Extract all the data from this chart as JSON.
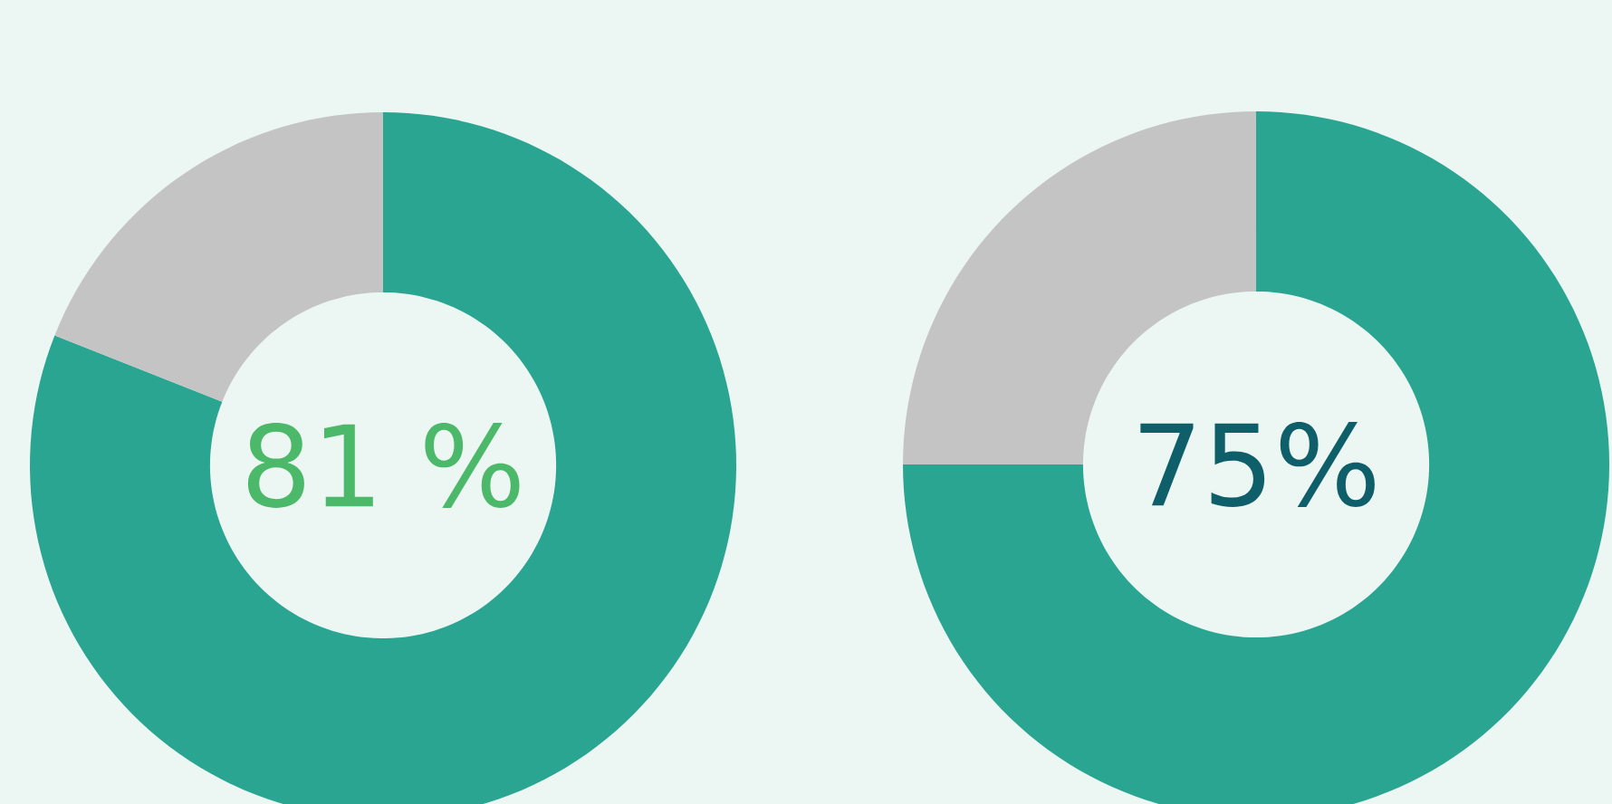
{
  "chart_data": [
    {
      "type": "donut",
      "categories": [
        null,
        null
      ],
      "values": [
        81,
        19
      ],
      "colors": [
        "#2aa592",
        "#c4c4c4"
      ],
      "annotations": [
        "81 %"
      ]
    },
    {
      "type": "donut",
      "categories": [
        null,
        null
      ],
      "values": [
        75,
        25
      ],
      "colors": [
        "#2aa592",
        "#c4c4c4"
      ],
      "annotations": [
        "75%"
      ]
    }
  ]
}
